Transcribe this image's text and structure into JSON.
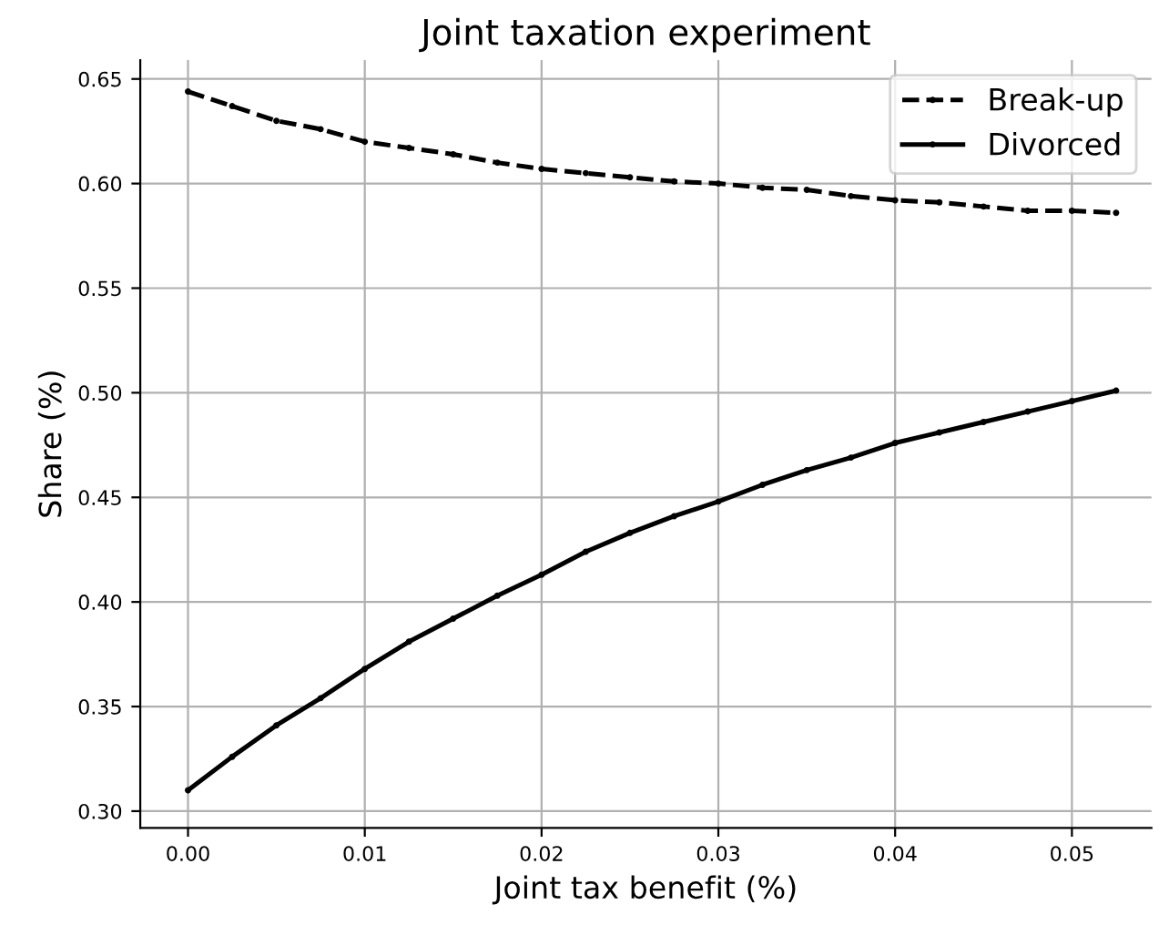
{
  "chart_data": {
    "type": "line",
    "title": "Joint taxation experiment",
    "xlabel": "Joint tax benefit (%)",
    "ylabel": "Share (%)",
    "x": [
      0,
      0.0025,
      0.005,
      0.0075,
      0.01,
      0.0125,
      0.015,
      0.0175,
      0.02,
      0.0225,
      0.025,
      0.0275,
      0.03,
      0.0325,
      0.035,
      0.0375,
      0.04,
      0.0425,
      0.045,
      0.0475,
      0.05,
      0.0525
    ],
    "series": [
      {
        "name": "Break-up",
        "color": "#000000",
        "line_style": "dashed",
        "values": [
          0.644,
          0.637,
          0.63,
          0.626,
          0.62,
          0.617,
          0.614,
          0.61,
          0.607,
          0.605,
          0.603,
          0.601,
          0.6,
          0.598,
          0.597,
          0.594,
          0.592,
          0.591,
          0.589,
          0.587,
          0.587,
          0.586
        ]
      },
      {
        "name": "Divorced",
        "color": "#000000",
        "line_style": "solid",
        "values": [
          0.31,
          0.326,
          0.341,
          0.354,
          0.368,
          0.381,
          0.392,
          0.403,
          0.413,
          0.424,
          0.433,
          0.441,
          0.448,
          0.456,
          0.463,
          0.469,
          0.476,
          0.481,
          0.486,
          0.491,
          0.496,
          0.501
        ]
      }
    ],
    "marker": "circle",
    "xlim": [
      -0.0027,
      0.0545
    ],
    "ylim": [
      0.292,
      0.659
    ],
    "xticks": [
      {
        "value": 0,
        "label": "0.00"
      },
      0.01,
      0.02,
      0.03,
      0.04,
      0.05
    ],
    "yticks": [
      {
        "value": 0.3,
        "label": "0.30"
      },
      0.35,
      {
        "value": 0.4,
        "label": "0.40"
      },
      0.45,
      {
        "value": 0.5,
        "label": "0.50"
      },
      0.55,
      {
        "value": 0.6,
        "label": "0.60"
      },
      0.65
    ],
    "grid": true,
    "legend": "top right"
  }
}
